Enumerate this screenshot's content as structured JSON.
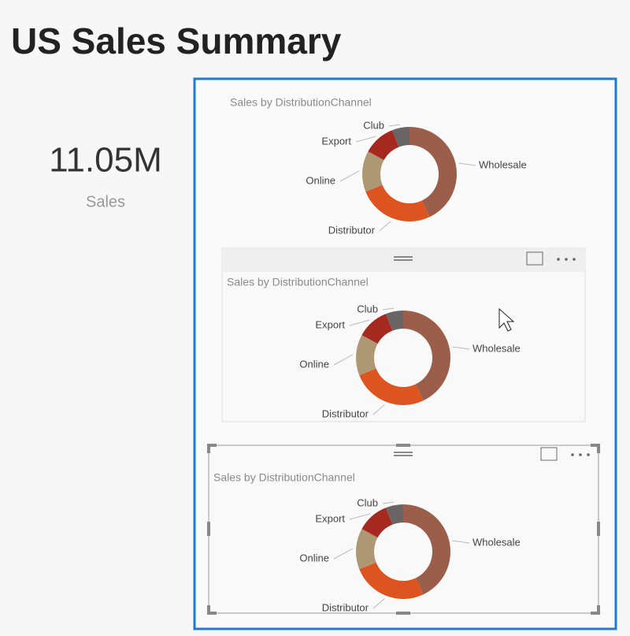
{
  "header": {
    "title": "US Sales Summary"
  },
  "kpi": {
    "value": "11.05M",
    "label": "Sales"
  },
  "chart_data": [
    {
      "type": "donut",
      "title": "Sales by DistributionChannel",
      "categories": [
        "Wholesale",
        "Distributor",
        "Online",
        "Export",
        "Club"
      ],
      "values": [
        43,
        26,
        14,
        11,
        6
      ],
      "colors": [
        "#9a5e4a",
        "#de5420",
        "#ad9873",
        "#a6291f",
        "#6a6464"
      ]
    },
    {
      "type": "donut",
      "title": "Sales by DistributionChannel",
      "categories": [
        "Wholesale",
        "Distributor",
        "Online",
        "Export",
        "Club"
      ],
      "values": [
        43,
        26,
        14,
        11,
        6
      ],
      "colors": [
        "#9a5e4a",
        "#de5420",
        "#ad9873",
        "#a6291f",
        "#6a6464"
      ]
    },
    {
      "type": "donut",
      "title": "Sales by DistributionChannel",
      "categories": [
        "Wholesale",
        "Distributor",
        "Online",
        "Export",
        "Club"
      ],
      "values": [
        43,
        26,
        14,
        11,
        6
      ],
      "colors": [
        "#9a5e4a",
        "#de5420",
        "#ad9873",
        "#a6291f",
        "#6a6464"
      ]
    }
  ]
}
